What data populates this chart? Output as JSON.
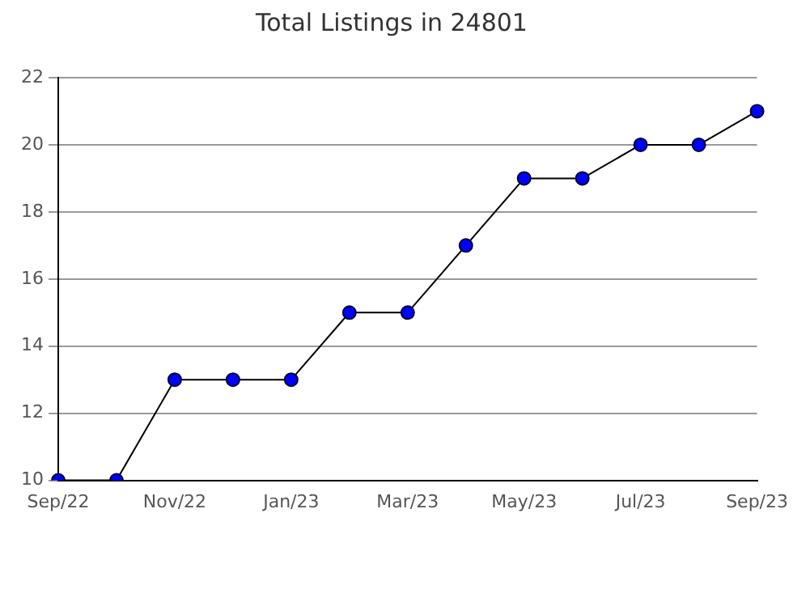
{
  "chart_data": {
    "type": "line",
    "title": "Total Listings in 24801",
    "categories": [
      "Sep/22",
      null,
      "Nov/22",
      null,
      "Jan/23",
      null,
      "Mar/23",
      null,
      "May/23",
      null,
      "Jul/23",
      null,
      "Sep/23"
    ],
    "series": [
      {
        "color": "#0000ff",
        "values": [
          10,
          10,
          13,
          13,
          13,
          15,
          15,
          17,
          19,
          19,
          20,
          20,
          21
        ]
      }
    ],
    "ylim": [
      10,
      22
    ],
    "yticks": [
      10,
      12,
      14,
      16,
      18,
      20,
      22
    ],
    "grid": "y",
    "legend": false,
    "marker": "circle",
    "line_style": "solid"
  }
}
